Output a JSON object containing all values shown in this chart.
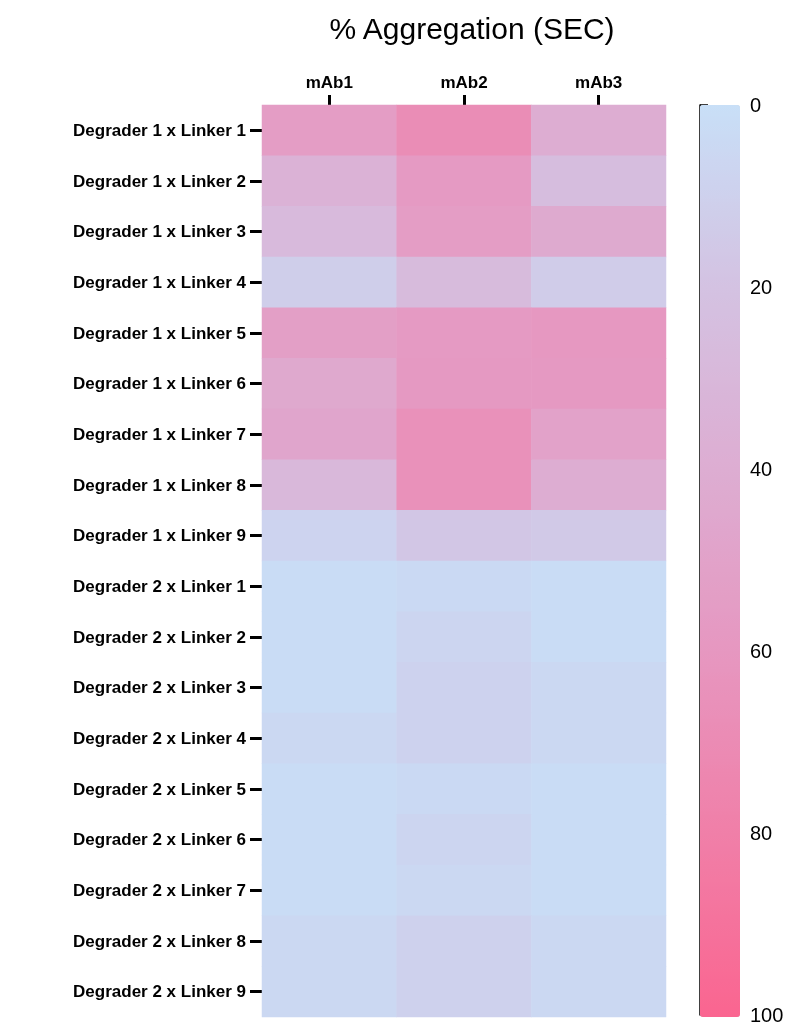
{
  "chart_data": {
    "type": "heatmap",
    "title": "% Aggregation (SEC)",
    "categories": [
      "mAb1",
      "mAb2",
      "mAb3"
    ],
    "y_categories": [
      "Degrader 1 x Linker 1",
      "Degrader 1 x Linker 2",
      "Degrader 1 x Linker 3",
      "Degrader 1 x Linker 4",
      "Degrader 1 x Linker 5",
      "Degrader 1 x Linker 6",
      "Degrader 1 x Linker 7",
      "Degrader 1 x Linker 8",
      "Degrader 1 x Linker 9",
      "Degrader 2 x Linker 1",
      "Degrader 2 x Linker 2",
      "Degrader 2 x Linker 3",
      "Degrader 2 x Linker 4",
      "Degrader 2 x Linker 5",
      "Degrader 2 x Linker 6",
      "Degrader 2 x Linker 7",
      "Degrader 2 x Linker 8",
      "Degrader 2 x Linker 9"
    ],
    "cells": [
      [
        55,
        68,
        40
      ],
      [
        35,
        57,
        25
      ],
      [
        28,
        55,
        43
      ],
      [
        12,
        27,
        13
      ],
      [
        53,
        57,
        59
      ],
      [
        44,
        58,
        58
      ],
      [
        47,
        65,
        50
      ],
      [
        30,
        65,
        40
      ],
      [
        8,
        17,
        15
      ],
      [
        2,
        4,
        2
      ],
      [
        2,
        7,
        2
      ],
      [
        2,
        9,
        5
      ],
      [
        5,
        9,
        5
      ],
      [
        2,
        4,
        2
      ],
      [
        2,
        7,
        2
      ],
      [
        2,
        5,
        2
      ],
      [
        5,
        10,
        5
      ],
      [
        5,
        10,
        5
      ]
    ],
    "clim": [
      0,
      100
    ],
    "cticks": [
      0,
      20,
      40,
      60,
      80,
      100
    ]
  }
}
